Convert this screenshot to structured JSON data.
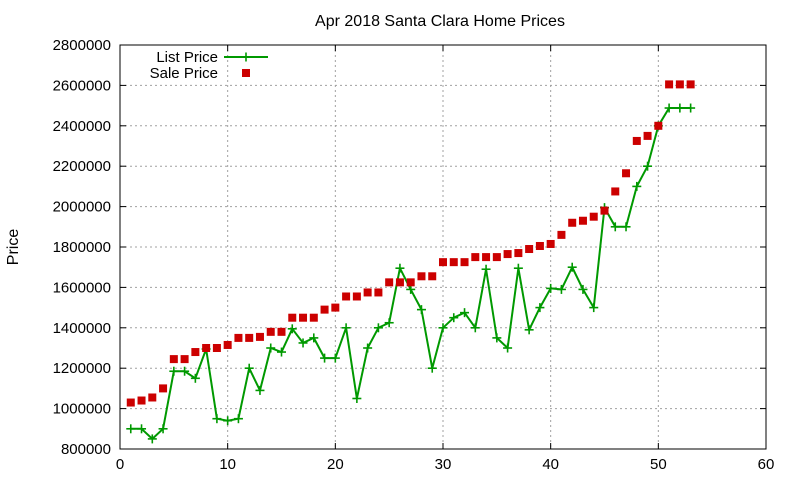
{
  "chart_data": {
    "type": "line",
    "title": "Apr 2018 Santa Clara Home Prices",
    "xlabel": "",
    "ylabel": "Price",
    "xlim": [
      0,
      60
    ],
    "ylim": [
      800000,
      2800000
    ],
    "xticks": [
      0,
      10,
      20,
      30,
      40,
      50,
      60
    ],
    "xtick_labels": [
      "0",
      "10",
      "20",
      "30",
      "40",
      "50",
      "60"
    ],
    "yticks": [
      800000,
      1000000,
      1200000,
      1400000,
      1600000,
      1800000,
      2000000,
      2200000,
      2400000,
      2600000,
      2800000
    ],
    "ytick_labels": [
      "800000",
      "1000000",
      "1200000",
      "1400000",
      "1600000",
      "1800000",
      "2000000",
      "2200000",
      "2400000",
      "2600000",
      "2800000"
    ],
    "grid": true,
    "legend_position": "top-left",
    "series": [
      {
        "name": "List Price",
        "style": "line-plus",
        "color": "#009900",
        "x": [
          1,
          2,
          3,
          4,
          5,
          6,
          7,
          8,
          9,
          10,
          11,
          12,
          13,
          14,
          15,
          16,
          17,
          18,
          19,
          20,
          21,
          22,
          23,
          24,
          25,
          26,
          27,
          28,
          29,
          30,
          31,
          32,
          33,
          34,
          35,
          36,
          37,
          38,
          39,
          40,
          41,
          42,
          43,
          44,
          45,
          46,
          47,
          48,
          49,
          50,
          51,
          52,
          53
        ],
        "y": [
          900000,
          900000,
          850000,
          900000,
          1185000,
          1185000,
          1150000,
          1295000,
          950000,
          940000,
          950000,
          1200000,
          1090000,
          1300000,
          1280000,
          1395000,
          1325000,
          1350000,
          1250000,
          1250000,
          1400000,
          1050000,
          1300000,
          1400000,
          1425000,
          1695000,
          1590000,
          1490000,
          1200000,
          1400000,
          1450000,
          1475000,
          1400000,
          1690000,
          1350000,
          1300000,
          1695000,
          1390000,
          1500000,
          1595000,
          1590000,
          1700000,
          1590000,
          1500000,
          1995000,
          1900000,
          1900000,
          2100000,
          2200000,
          2400000,
          2488000,
          2488000,
          2488000
        ]
      },
      {
        "name": "Sale Price",
        "style": "square-markers",
        "color": "#cc0000",
        "x": [
          1,
          2,
          3,
          4,
          5,
          6,
          7,
          8,
          9,
          10,
          11,
          12,
          13,
          14,
          15,
          16,
          17,
          18,
          19,
          20,
          21,
          22,
          23,
          24,
          25,
          26,
          27,
          28,
          29,
          30,
          31,
          32,
          33,
          34,
          35,
          36,
          37,
          38,
          39,
          40,
          41,
          42,
          43,
          44,
          45,
          46,
          47,
          48,
          49,
          50,
          51,
          52,
          53
        ],
        "y": [
          1030000,
          1040000,
          1055000,
          1100000,
          1245000,
          1245000,
          1280000,
          1300000,
          1300000,
          1315000,
          1350000,
          1350000,
          1355000,
          1380000,
          1380000,
          1450000,
          1450000,
          1450000,
          1490000,
          1500000,
          1555000,
          1555000,
          1575000,
          1575000,
          1625000,
          1625000,
          1625000,
          1655000,
          1655000,
          1725000,
          1725000,
          1725000,
          1750000,
          1750000,
          1750000,
          1765000,
          1770000,
          1790000,
          1805000,
          1815000,
          1860000,
          1920000,
          1930000,
          1950000,
          1980000,
          2075000,
          2165000,
          2325000,
          2350000,
          2400000,
          2605000,
          2605000,
          2605000
        ]
      }
    ]
  }
}
